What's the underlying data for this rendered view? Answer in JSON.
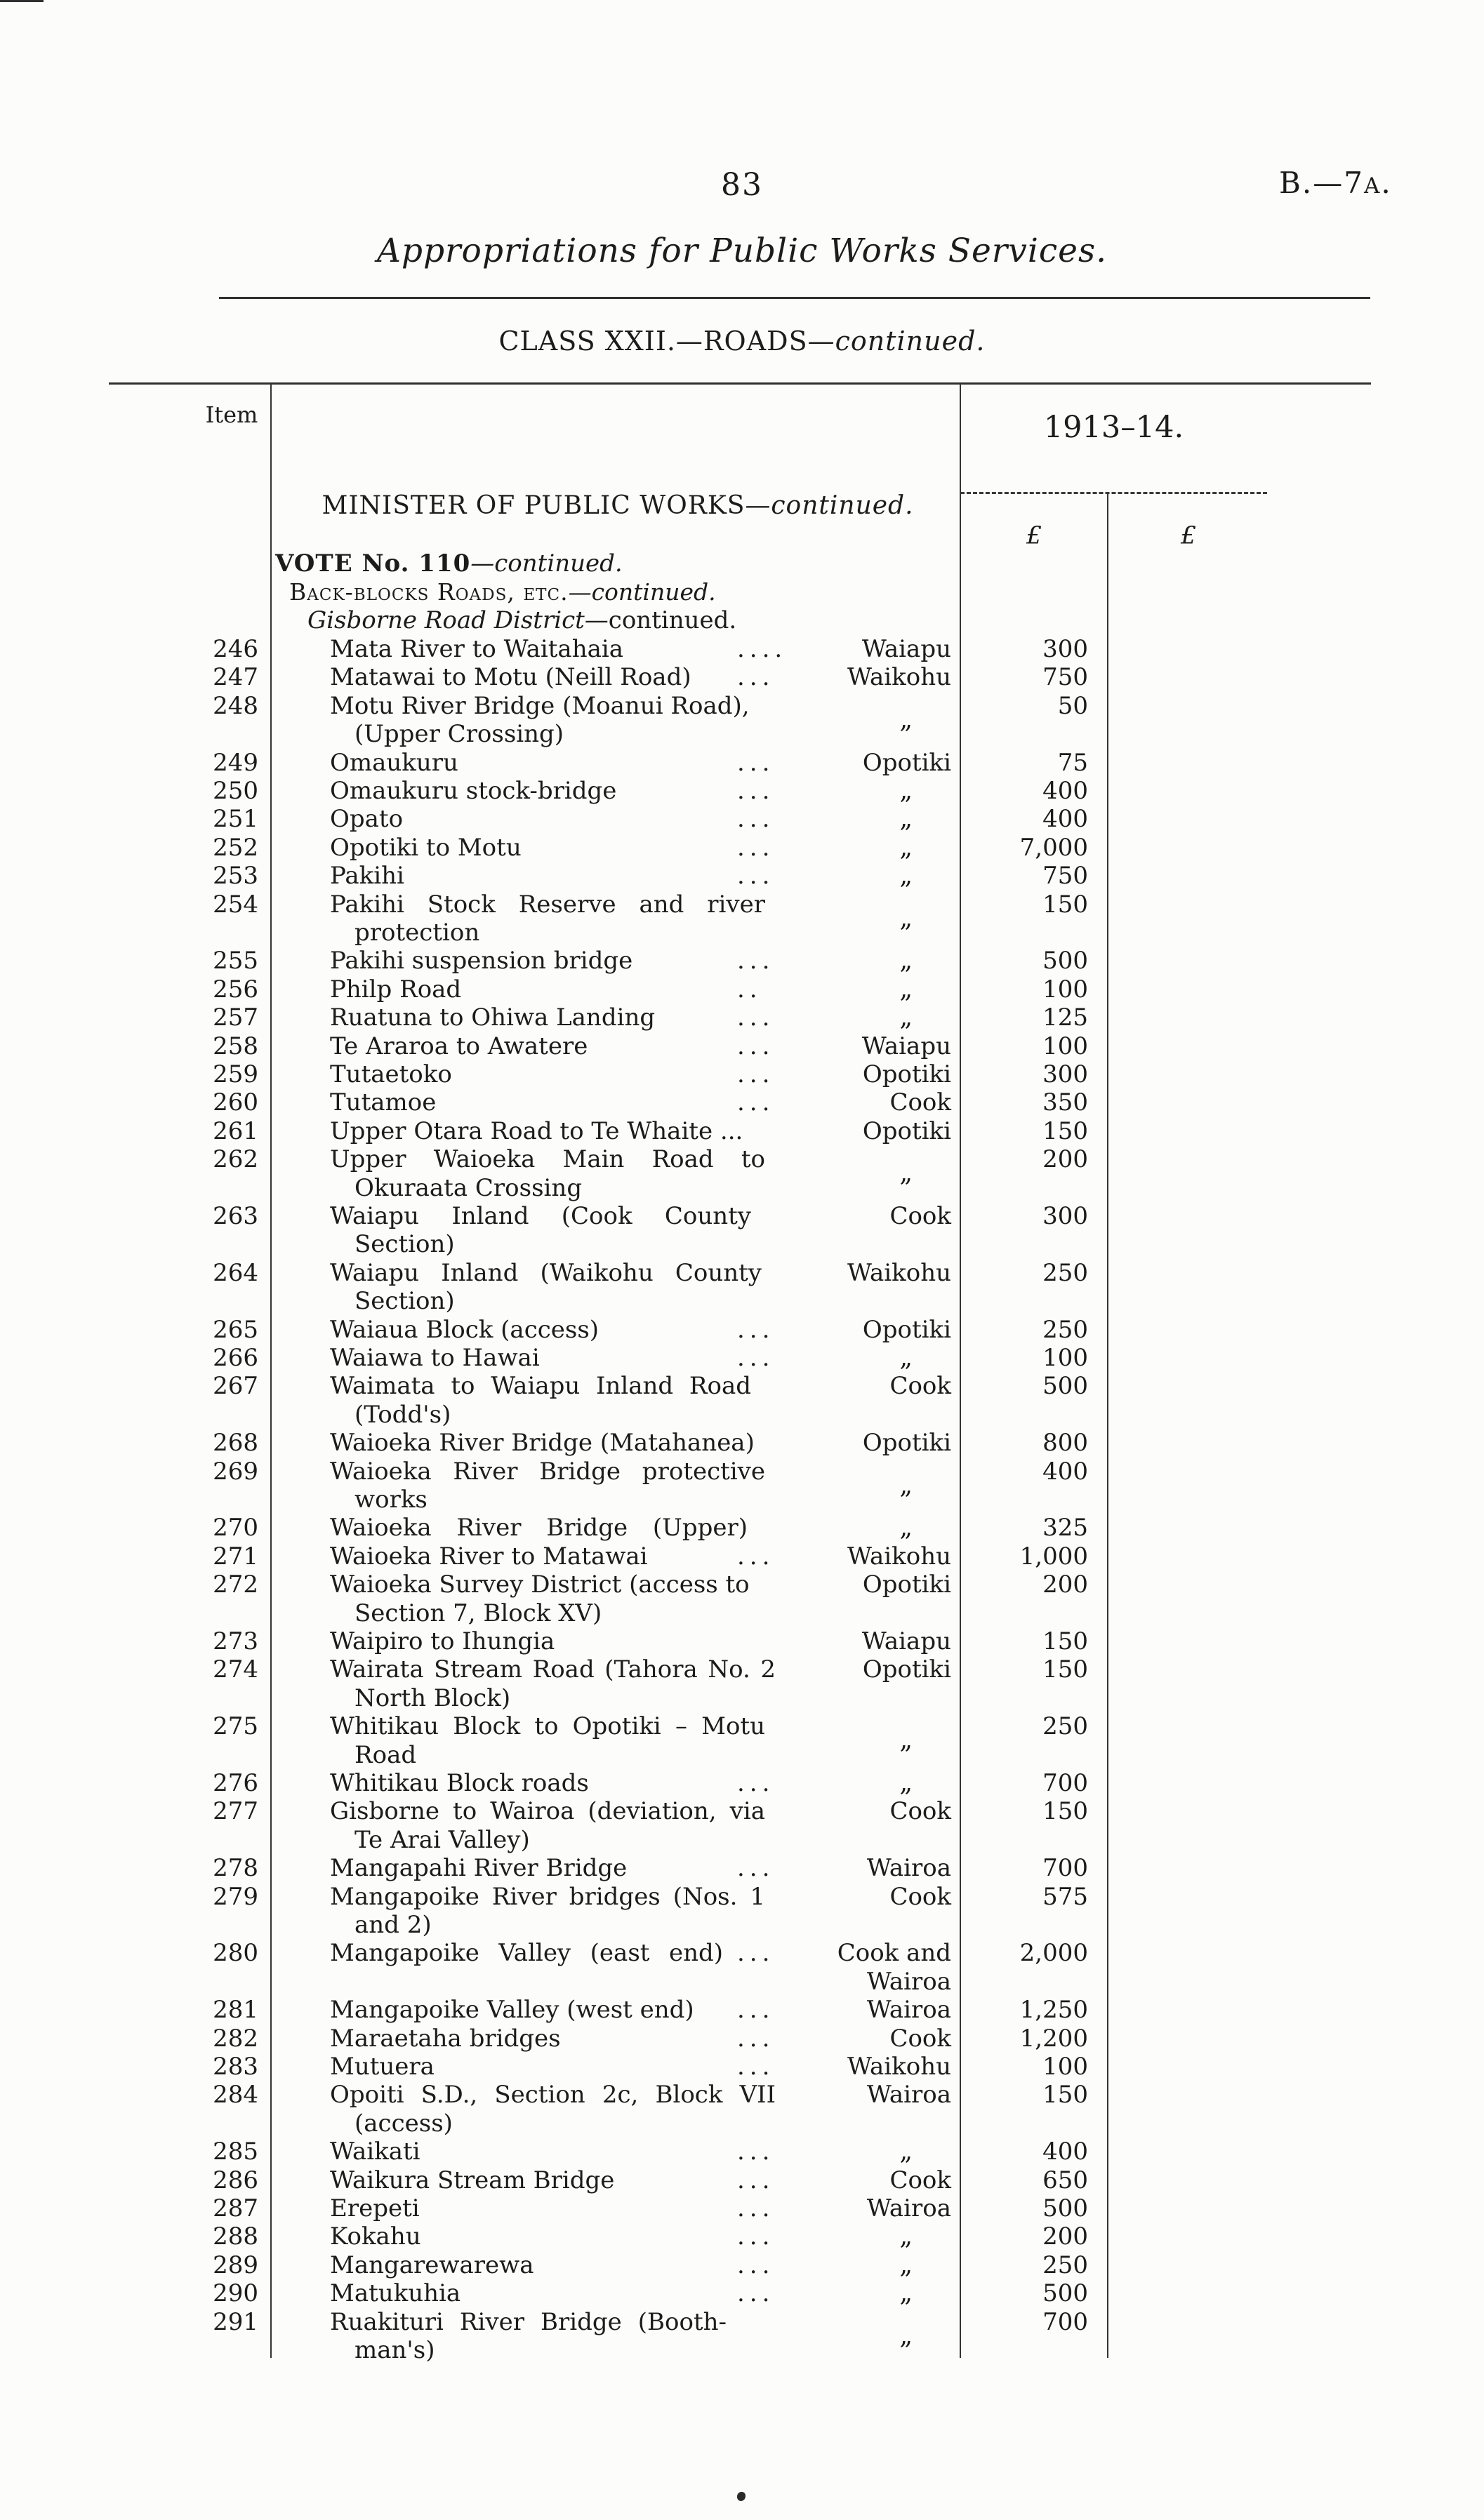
{
  "header": {
    "page_number": "83",
    "doc_ref_main": "B.—7",
    "doc_ref_small": "A",
    "doc_ref_dot": ".",
    "title": "Appropriations for Public Works Services.",
    "class_heading": "CLASS XXII.—ROADS",
    "class_continued": "—continued."
  },
  "table": {
    "item_header": "Item",
    "year_header": "1913–14.",
    "pound_col1": "£",
    "pound_col2": "£",
    "minister_heading": "MINISTER OF PUBLIC WORKS",
    "minister_continued": "—continued.",
    "vote_heading": "VOTE No. 110",
    "vote_continued": "—continued.",
    "subsection_heading": "Back-blocks Roads, etc.",
    "subsection_continued": "—continued.",
    "district_heading": "Gisborne Road District",
    "district_continued": "—continued.",
    "ditto_mark": "„",
    "rows": [
      {
        "i": "246",
        "d": [
          "Mata River to Waitahaia"
        ],
        "dots": "....",
        "l": [
          "Waiapu"
        ],
        "a": "300"
      },
      {
        "i": "247",
        "d": [
          "Matawai to Motu (Neill Road)"
        ],
        "dots": "...",
        "l": [
          "Waikohu"
        ],
        "a": "750"
      },
      {
        "i": "248",
        "d": [
          "Motu River Bridge (Moanui Road),",
          "(Upper Crossing)"
        ],
        "ditto": true,
        "a": "50"
      },
      {
        "i": "249",
        "d": [
          "Omaukuru"
        ],
        "dots": "...",
        "l": [
          "Opotiki"
        ],
        "a": "75"
      },
      {
        "i": "250",
        "d": [
          "Omaukuru stock-bridge"
        ],
        "dots": "...",
        "ditto": true,
        "a": "400"
      },
      {
        "i": "251",
        "d": [
          "Opato"
        ],
        "dots": "...",
        "ditto": true,
        "a": "400"
      },
      {
        "i": "252",
        "d": [
          "Opotiki to Motu"
        ],
        "dots": "...",
        "ditto": true,
        "a": "7,000"
      },
      {
        "i": "253",
        "d": [
          "Pakihi"
        ],
        "dots": "...",
        "ditto": true,
        "a": "750"
      },
      {
        "i": "254",
        "d": [
          "Pakihi Stock Reserve and river",
          "protection"
        ],
        "j": true,
        "jw": 620,
        "ditto": true,
        "a": "150"
      },
      {
        "i": "255",
        "d": [
          "Pakihi suspension bridge"
        ],
        "dots": "...",
        "ditto": true,
        "a": "500"
      },
      {
        "i": "256",
        "d": [
          "Philp Road"
        ],
        "dots": "..",
        "ditto": true,
        "a": "100"
      },
      {
        "i": "257",
        "d": [
          "Ruatuna to Ohiwa Landing"
        ],
        "dots": "...",
        "ditto": true,
        "a": "125"
      },
      {
        "i": "258",
        "d": [
          "Te Araroa to Awatere"
        ],
        "dots": "...",
        "l": [
          "Waiapu"
        ],
        "a": "100"
      },
      {
        "i": "259",
        "d": [
          "Tutaetoko"
        ],
        "dots": "...",
        "l": [
          "Opotiki"
        ],
        "a": "300"
      },
      {
        "i": "260",
        "d": [
          "Tutamoe"
        ],
        "dots": "...",
        "l": [
          "Cook"
        ],
        "a": "350"
      },
      {
        "i": "261",
        "d": [
          "Upper Otara Road to Te Whaite ..."
        ],
        "l": [
          "Opotiki"
        ],
        "a": "150"
      },
      {
        "i": "262",
        "d": [
          "Upper Waioeka Main Road to",
          "Okuraata Crossing"
        ],
        "j": true,
        "jw": 620,
        "ditto": true,
        "a": "200"
      },
      {
        "i": "263",
        "d": [
          "Waiapu Inland (Cook County",
          "Section)"
        ],
        "j": true,
        "jw": 600,
        "l": [
          "Cook"
        ],
        "a": "300"
      },
      {
        "i": "264",
        "d": [
          "Waiapu Inland (Waikohu County",
          "Section)"
        ],
        "j": true,
        "jw": 615,
        "l": [
          "Waikohu"
        ],
        "a": "250"
      },
      {
        "i": "265",
        "d": [
          "Waiaua Block (access)"
        ],
        "dots": "...",
        "l": [
          "Opotiki"
        ],
        "a": "250"
      },
      {
        "i": "266",
        "d": [
          "Waiawa to Hawai"
        ],
        "dots": "...",
        "ditto": true,
        "a": "100"
      },
      {
        "i": "267",
        "d": [
          "Waimata to Waiapu Inland Road",
          "(Todd's)"
        ],
        "j": true,
        "jw": 600,
        "l": [
          "Cook"
        ],
        "a": "500"
      },
      {
        "i": "268",
        "d": [
          "Waioeka River Bridge (Matahanea)"
        ],
        "l": [
          "Opotiki"
        ],
        "a": "800"
      },
      {
        "i": "269",
        "d": [
          "Waioeka River Bridge protective",
          "works"
        ],
        "j": true,
        "jw": 620,
        "ditto": true,
        "a": "400"
      },
      {
        "i": "270",
        "d": [
          "Waioeka River Bridge (Upper)"
        ],
        "j": true,
        "jw": 595,
        "ditto": true,
        "a": "325"
      },
      {
        "i": "271",
        "d": [
          "Waioeka River to Matawai"
        ],
        "dots": "...",
        "l": [
          "Waikohu"
        ],
        "a": "1,000"
      },
      {
        "i": "272",
        "d": [
          "Waioeka Survey District (access to",
          "Section 7, Block XV)"
        ],
        "l": [
          "Opotiki"
        ],
        "a": "200"
      },
      {
        "i": "273",
        "d": [
          "Waipiro to Ihungia"
        ],
        "l": [
          "Waiapu"
        ],
        "a": "150"
      },
      {
        "i": "274",
        "d": [
          "Wairata Stream Road (Tahora No. 2",
          "North Block)"
        ],
        "j": true,
        "jw": 635,
        "l": [
          "Opotiki"
        ],
        "a": "150"
      },
      {
        "i": "275",
        "d": [
          "Whitikau Block to Opotiki – Motu",
          "Road"
        ],
        "j": true,
        "jw": 620,
        "ditto": true,
        "a": "250"
      },
      {
        "i": "276",
        "d": [
          "Whitikau Block roads"
        ],
        "dots": "...",
        "ditto": true,
        "a": "700"
      },
      {
        "i": "277",
        "d": [
          "Gisborne to Wairoa (deviation, via",
          "Te Arai Valley)"
        ],
        "j": true,
        "jw": 620,
        "l": [
          "Cook"
        ],
        "a": "150"
      },
      {
        "i": "278",
        "d": [
          "Mangapahi River Bridge"
        ],
        "dots": "...",
        "l": [
          "Wairoa"
        ],
        "a": "700"
      },
      {
        "i": "279",
        "d": [
          "Mangapoike River bridges (Nos. 1",
          "and 2)"
        ],
        "j": true,
        "jw": 620,
        "l": [
          "Cook"
        ],
        "a": "575"
      },
      {
        "i": "280",
        "d": [
          "Mangapoike Valley (east end)"
        ],
        "dots": "...",
        "j": true,
        "jw": 560,
        "l": [
          "Cook and",
          "Wairoa"
        ],
        "a": "2,000"
      },
      {
        "i": "281",
        "d": [
          "Mangapoike Valley (west end)"
        ],
        "dots": "...",
        "l": [
          "Wairoa"
        ],
        "a": "1,250"
      },
      {
        "i": "282",
        "d": [
          "Maraetaha bridges"
        ],
        "dots": "...",
        "l": [
          "Cook"
        ],
        "a": "1,200"
      },
      {
        "i": "283",
        "d": [
          "Mutuera"
        ],
        "dots": "...",
        "l": [
          "Waikohu"
        ],
        "a": "100"
      },
      {
        "i": "284",
        "d": [
          "Opoiti S.D., Section 2c, Block VII",
          "(access)"
        ],
        "j": true,
        "jw": 635,
        "l": [
          "Wairoa"
        ],
        "a": "150"
      },
      {
        "i": "285",
        "d": [
          "Waikati"
        ],
        "dots": "...",
        "ditto": true,
        "a": "400"
      },
      {
        "i": "286",
        "d": [
          "Waikura Stream Bridge"
        ],
        "dots": "...",
        "l": [
          "Cook"
        ],
        "a": "650"
      },
      {
        "i": "287",
        "d": [
          "Erepeti"
        ],
        "dots": "...",
        "l": [
          "Wairoa"
        ],
        "a": "500"
      },
      {
        "i": "288",
        "d": [
          "Kokahu"
        ],
        "dots": "...",
        "ditto": true,
        "a": "200"
      },
      {
        "i": "289",
        "d": [
          "Mangarewarewa"
        ],
        "dots": "...",
        "ditto": true,
        "a": "250"
      },
      {
        "i": "290",
        "d": [
          "Matukuhia"
        ],
        "dots": "...",
        "ditto": true,
        "a": "500"
      },
      {
        "i": "291",
        "d": [
          "Ruakituri River Bridge (Booth-",
          "man's)"
        ],
        "j": true,
        "jw": 565,
        "ditto": true,
        "a": "700"
      }
    ]
  }
}
